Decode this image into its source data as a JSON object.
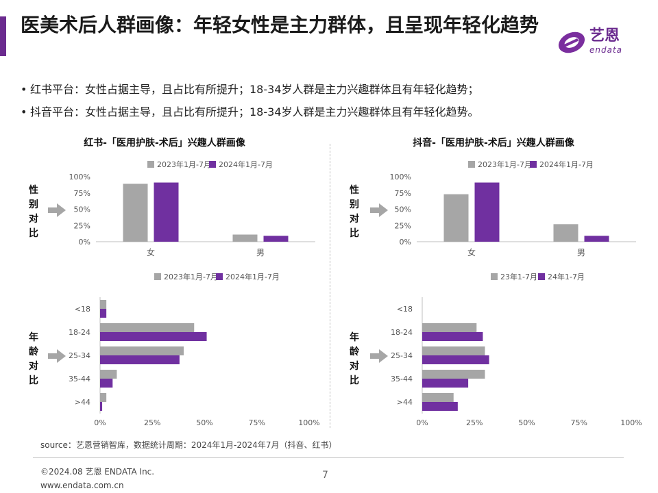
{
  "slide": {
    "title": "医美术后人群画像：年轻女性是主力群体，且呈现年轻化趋势",
    "bullets": [
      "红书平台：女性占据主导，且占比有所提升；18-34岁人群是主力兴趣群体且有年轻化趋势；",
      "抖音平台：女性占据主导，且占比有所提升；18-34岁人群是主力兴趣群体且有年轻化趋势。"
    ],
    "panels": {
      "redbook_title": "红书-「医用护肤-术后」兴趣人群画像",
      "douyin_title": "抖音-「医用护肤-术后」兴趣人群画像"
    },
    "side_labels": {
      "gender": "性别对比",
      "age": "年龄对比"
    },
    "footer": {
      "source": "source：艺恩营销智库，数据统计周期：2024年1月-2024年7月（抖音、红书）",
      "copyright": "©2024.08 艺恩 ENDATA Inc.",
      "website": "www.endata.com.cn",
      "page_number": "7"
    },
    "logo": {
      "text": "艺恩",
      "subtext": "endata"
    }
  },
  "colors": {
    "series_prev": "#a6a6a6",
    "series_curr": "#7030a0",
    "accent": "#6b2b8f"
  },
  "chart_data": [
    {
      "id": "redbook-gender",
      "type": "bar",
      "categories": [
        "女",
        "男"
      ],
      "series": [
        {
          "name": "2023年1月-7月",
          "values": [
            89,
            11
          ]
        },
        {
          "name": "2024年1月-7月",
          "values": [
            91,
            9
          ]
        }
      ],
      "ylim": [
        0,
        100
      ],
      "yticks": [
        "0%",
        "25%",
        "50%",
        "75%",
        "100%"
      ],
      "grid": false,
      "legend": "top"
    },
    {
      "id": "redbook-age",
      "type": "bar",
      "orientation": "horizontal",
      "categories": [
        "<18",
        "18-24",
        "25-34",
        "35-44",
        ">44"
      ],
      "series": [
        {
          "name": "2023年1月-7月",
          "values": [
            3,
            45,
            40,
            8,
            3
          ]
        },
        {
          "name": "2024年1月-7月",
          "values": [
            3,
            51,
            38,
            6,
            1
          ]
        }
      ],
      "xlim": [
        0,
        100
      ],
      "xticks": [
        "0%",
        "25%",
        "50%",
        "75%",
        "100%"
      ],
      "grid": false,
      "legend": "top"
    },
    {
      "id": "douyin-gender",
      "type": "bar",
      "categories": [
        "女",
        "男"
      ],
      "series": [
        {
          "name": "2023年1月-7月",
          "values": [
            73,
            27
          ]
        },
        {
          "name": "2024年1月-7月",
          "values": [
            91,
            9
          ]
        }
      ],
      "ylim": [
        0,
        100
      ],
      "yticks": [
        "0%",
        "25%",
        "50%",
        "75%",
        "100%"
      ],
      "grid": false,
      "legend": "top"
    },
    {
      "id": "douyin-age",
      "type": "bar",
      "orientation": "horizontal",
      "categories": [
        "<18",
        "18-24",
        "25-34",
        "35-44",
        ">44"
      ],
      "series": [
        {
          "name": "23年1-7月",
          "values": [
            0,
            26,
            30,
            30,
            15
          ]
        },
        {
          "name": "24年1-7月",
          "values": [
            0,
            29,
            32,
            22,
            17
          ]
        }
      ],
      "xlim": [
        0,
        100
      ],
      "xticks": [
        "0%",
        "25%",
        "50%",
        "75%",
        "100%"
      ],
      "grid": false,
      "legend": "top"
    }
  ]
}
